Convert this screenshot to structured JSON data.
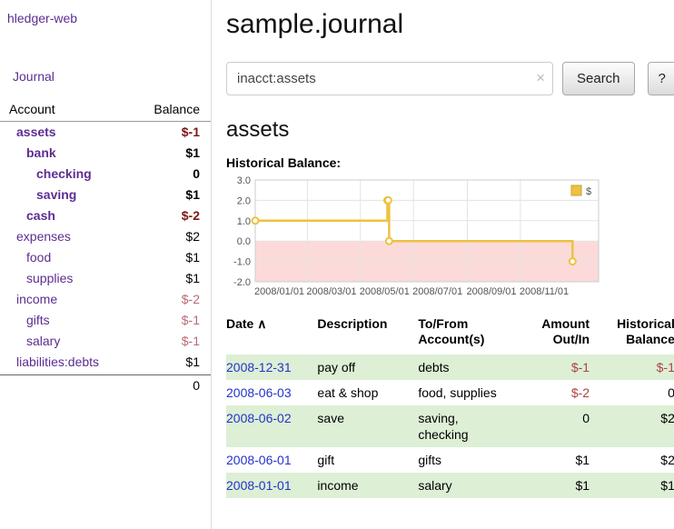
{
  "app": {
    "title": "hledger-web"
  },
  "sidebar": {
    "journal_link": "Journal",
    "accounts": {
      "header_account": "Account",
      "header_balance": "Balance",
      "rows": [
        {
          "name": "assets",
          "level": 0,
          "bold": true,
          "balance": "$-1"
        },
        {
          "name": "bank",
          "level": 1,
          "bold": true,
          "balance": "$1"
        },
        {
          "name": "checking",
          "level": 2,
          "bold": true,
          "balance": "0"
        },
        {
          "name": "saving",
          "level": 2,
          "bold": true,
          "balance": "$1"
        },
        {
          "name": "cash",
          "level": 1,
          "bold": true,
          "balance": "$-2"
        },
        {
          "name": "expenses",
          "level": 0,
          "bold": false,
          "balance": "$2"
        },
        {
          "name": "food",
          "level": 1,
          "bold": false,
          "balance": "$1"
        },
        {
          "name": "supplies",
          "level": 1,
          "bold": false,
          "balance": "$1"
        },
        {
          "name": "income",
          "level": 0,
          "bold": false,
          "balance": "$-2"
        },
        {
          "name": "gifts",
          "level": 1,
          "bold": false,
          "balance": "$-1"
        },
        {
          "name": "salary",
          "level": 1,
          "bold": false,
          "balance": "$-1"
        },
        {
          "name": "liabilities:debts",
          "level": 0,
          "bold": false,
          "balance": "$1"
        }
      ],
      "total": "0"
    }
  },
  "main": {
    "title": "sample.journal",
    "search": {
      "value": "inacct:assets",
      "clear_icon": "×",
      "search_button": "Search",
      "help_button": "?"
    },
    "account_heading": "assets"
  },
  "chart_data": {
    "type": "line",
    "step": true,
    "title": "Historical Balance:",
    "xlabel": "",
    "ylabel": "",
    "xlim": [
      0,
      395
    ],
    "ylim": [
      -2,
      3
    ],
    "grid": true,
    "y_ticks": [
      {
        "v": 3,
        "label": "3.0"
      },
      {
        "v": 2,
        "label": "2.0"
      },
      {
        "v": 1,
        "label": "1.0"
      },
      {
        "v": 0,
        "label": "0.0"
      },
      {
        "v": -1,
        "label": "-1.0"
      },
      {
        "v": -2,
        "label": "-2.0"
      }
    ],
    "x_ticks": [
      {
        "x": 0,
        "label": "2008/01/01"
      },
      {
        "x": 60,
        "label": "2008/03/01"
      },
      {
        "x": 121,
        "label": "2008/05/01"
      },
      {
        "x": 182,
        "label": "2008/07/01"
      },
      {
        "x": 244,
        "label": "2008/09/01"
      },
      {
        "x": 305,
        "label": "2008/11/01"
      }
    ],
    "series": [
      {
        "name": "$",
        "color": "#edc240",
        "points": [
          {
            "date": "2008-01-01",
            "x": 0,
            "y": 1
          },
          {
            "date": "2008-06-01",
            "x": 152,
            "y": 2
          },
          {
            "date": "2008-06-02",
            "x": 153,
            "y": 2
          },
          {
            "date": "2008-06-03",
            "x": 154,
            "y": 0
          },
          {
            "date": "2008-12-31",
            "x": 365,
            "y": -1
          }
        ]
      }
    ],
    "negative_region": {
      "from": 0,
      "to": -2,
      "color": "#fcdada"
    },
    "legend": {
      "label": "$",
      "position": "top-right"
    }
  },
  "register": {
    "headers": [
      {
        "label": "Date",
        "align": "left",
        "sort_icon": "∧"
      },
      {
        "label": "Description",
        "align": "left"
      },
      {
        "label": "To/From Account(s)",
        "align": "left"
      },
      {
        "label": "Amount Out/In",
        "align": "right"
      },
      {
        "label": "Historical Balance",
        "align": "right"
      }
    ],
    "rows": [
      {
        "date": "2008-12-31",
        "description": "pay off",
        "accounts": "debts",
        "amount": "$-1",
        "balance": "$-1"
      },
      {
        "date": "2008-06-03",
        "description": "eat & shop",
        "accounts": "food, supplies",
        "amount": "$-2",
        "balance": "0"
      },
      {
        "date": "2008-06-02",
        "description": "save",
        "accounts": "saving, checking",
        "amount": "0",
        "balance": "$2"
      },
      {
        "date": "2008-06-01",
        "description": "gift",
        "accounts": "gifts",
        "amount": "$1",
        "balance": "$2"
      },
      {
        "date": "2008-01-01",
        "description": "income",
        "accounts": "salary",
        "amount": "$1",
        "balance": "$1"
      }
    ]
  },
  "colors": {
    "link_purple": "#5c2d91",
    "date_blue": "#2233cc",
    "neg_table": "#a94442",
    "neg_bold": "#801515",
    "neg_soft": "#b86a75",
    "row_green": "#ddefd5",
    "chart_line": "#edc240",
    "chart_negative_fill": "#fcdada"
  }
}
